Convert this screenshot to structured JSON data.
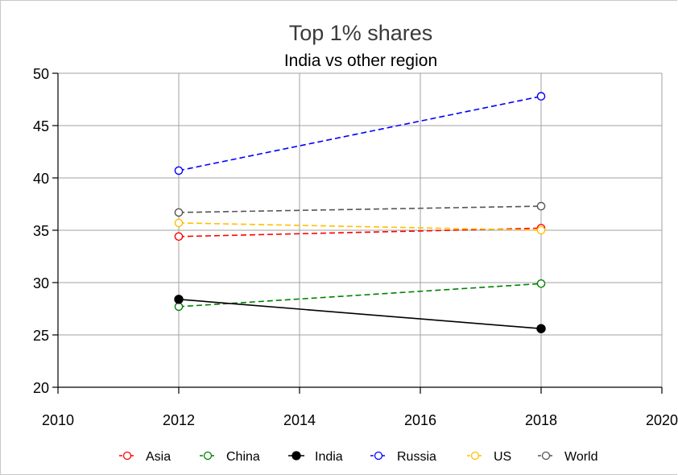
{
  "chart_data": {
    "type": "line",
    "title": "Top 1% shares",
    "subtitle": "India vs other region",
    "xlabel": "",
    "ylabel": "",
    "xlim": [
      2010,
      2020
    ],
    "ylim": [
      20,
      50
    ],
    "xticks": [
      2010,
      2012,
      2014,
      2016,
      2018,
      2020
    ],
    "yticks": [
      20,
      25,
      30,
      35,
      40,
      45,
      50
    ],
    "grid": true,
    "legend_position": "bottom",
    "series": [
      {
        "name": "Asia",
        "color": "#ff0000",
        "style": "dashed",
        "marker": "open-circle",
        "x": [
          2012,
          2018
        ],
        "y": [
          34.4,
          35.2
        ]
      },
      {
        "name": "China",
        "color": "#008000",
        "style": "dashed",
        "marker": "open-circle",
        "x": [
          2012,
          2018
        ],
        "y": [
          27.7,
          29.9
        ]
      },
      {
        "name": "India",
        "color": "#000000",
        "style": "solid",
        "marker": "filled-circle",
        "x": [
          2012,
          2018
        ],
        "y": [
          28.4,
          25.6
        ]
      },
      {
        "name": "Russia",
        "color": "#0000ff",
        "style": "dashed",
        "marker": "open-circle",
        "x": [
          2012,
          2018
        ],
        "y": [
          40.7,
          47.8
        ]
      },
      {
        "name": "US",
        "color": "#ffc000",
        "style": "dashed",
        "marker": "open-circle",
        "x": [
          2012,
          2018
        ],
        "y": [
          35.7,
          35.0
        ]
      },
      {
        "name": "World",
        "color": "#555555",
        "style": "dashed",
        "marker": "open-circle",
        "x": [
          2012,
          2018
        ],
        "y": [
          36.7,
          37.3
        ]
      }
    ]
  }
}
